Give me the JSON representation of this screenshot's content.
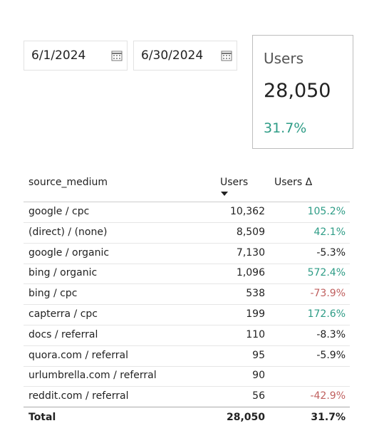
{
  "date_range": {
    "start": "6/1/2024",
    "end": "6/30/2024"
  },
  "scorecard": {
    "label": "Users",
    "value": "28,050",
    "delta": "31.7%",
    "delta_color": "#2e9c86"
  },
  "table": {
    "headers": [
      "source_medium",
      "Users",
      "Users Δ"
    ],
    "rows": [
      {
        "source_medium": "google / cpc",
        "users": "10,362",
        "users_delta": "105.2%",
        "delta_color": "#2e9c86"
      },
      {
        "source_medium": "(direct) / (none)",
        "users": "8,509",
        "users_delta": "42.1%",
        "delta_color": "#2e9c86"
      },
      {
        "source_medium": "google / organic",
        "users": "7,130",
        "users_delta": "-5.3%",
        "delta_color": "#222222"
      },
      {
        "source_medium": "bing / organic",
        "users": "1,096",
        "users_delta": "572.4%",
        "delta_color": "#2e9c86"
      },
      {
        "source_medium": "bing / cpc",
        "users": "538",
        "users_delta": "-73.9%",
        "delta_color": "#c0605f"
      },
      {
        "source_medium": "capterra / cpc",
        "users": "199",
        "users_delta": "172.6%",
        "delta_color": "#2e9c86"
      },
      {
        "source_medium": "docs / referral",
        "users": "110",
        "users_delta": "-8.3%",
        "delta_color": "#222222"
      },
      {
        "source_medium": "quora.com / referral",
        "users": "95",
        "users_delta": "-5.9%",
        "delta_color": "#222222"
      },
      {
        "source_medium": "urlumbrella.com / referral",
        "users": "90",
        "users_delta": null,
        "delta_color": "#222222"
      },
      {
        "source_medium": "reddit.com / referral",
        "users": "56",
        "users_delta": "-42.9%",
        "delta_color": "#c0605f"
      }
    ],
    "total": {
      "label": "Total",
      "users": "28,050",
      "users_delta": "31.7%"
    }
  }
}
